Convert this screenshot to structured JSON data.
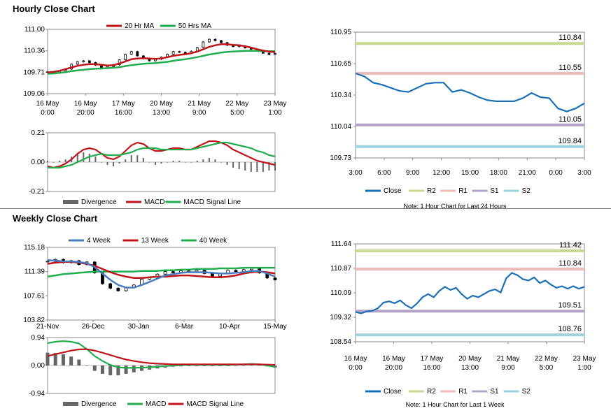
{
  "page": {
    "hourly_title": "Hourly Close Chart",
    "weekly_title": "Weekly Close Chart"
  },
  "colors": {
    "ma_red": "#c0141b",
    "ma_green": "#21ad4e",
    "ma_blue": "#4a7bbd",
    "close": "#1a6fb5",
    "r2": "#c6d98e",
    "r1": "#eebbb9",
    "s1": "#b3a3c9",
    "s2": "#9dd3dd",
    "hist": "#666666",
    "price": "#000000"
  },
  "chart_data": [
    {
      "id": "hourly_price",
      "type": "line",
      "legend": [
        "20 Hr MA",
        "50 Hrs MA"
      ],
      "yticks": [
        "111.00",
        "110.36",
        "109.71",
        "109.06"
      ],
      "ylim": [
        109.06,
        111.0
      ],
      "xticks": [
        [
          "16 May",
          "0:00"
        ],
        [
          "16 May",
          "20:00"
        ],
        [
          "17 May",
          "16:00"
        ],
        [
          "20 May",
          "13:00"
        ],
        [
          "21 May",
          "9:00"
        ],
        [
          "22 May",
          "5:00"
        ],
        [
          "23 May",
          "1:00"
        ]
      ],
      "price": [
        109.72,
        109.68,
        109.75,
        109.8,
        109.95,
        110.02,
        110.05,
        110.0,
        109.92,
        109.84,
        109.88,
        109.93,
        110.08,
        110.25,
        110.33,
        110.2,
        110.12,
        110.05,
        110.1,
        110.16,
        110.25,
        110.33,
        110.31,
        110.28,
        110.34,
        110.45,
        110.62,
        110.7,
        110.66,
        110.6,
        110.52,
        110.48,
        110.5,
        110.44,
        110.4,
        110.35,
        110.28,
        110.24,
        110.27
      ],
      "ma20": [
        109.7,
        109.72,
        109.75,
        109.8,
        109.85,
        109.9,
        109.93,
        109.95,
        109.95,
        109.93,
        109.91,
        109.92,
        109.97,
        110.03,
        110.1,
        110.12,
        110.13,
        110.12,
        110.11,
        110.12,
        110.16,
        110.2,
        110.23,
        110.25,
        110.28,
        110.33,
        110.4,
        110.47,
        110.52,
        110.55,
        110.55,
        110.53,
        110.52,
        110.49,
        110.45,
        110.4,
        110.36,
        110.33,
        110.31
      ],
      "ma50": [
        109.66,
        109.67,
        109.69,
        109.71,
        109.74,
        109.76,
        109.78,
        109.8,
        109.81,
        109.82,
        109.83,
        109.84,
        109.86,
        109.89,
        109.92,
        109.94,
        109.96,
        109.97,
        109.98,
        110.0,
        110.02,
        110.05,
        110.08,
        110.1,
        110.13,
        110.16,
        110.2,
        110.24,
        110.27,
        110.3,
        110.32,
        110.33,
        110.34,
        110.35,
        110.35,
        110.35,
        110.34,
        110.34,
        110.34
      ]
    },
    {
      "id": "hourly_macd",
      "type": "line",
      "legend": [
        "Divergence",
        "MACD",
        "MACD Signal Line"
      ],
      "yticks": [
        "0.21",
        "0.00",
        "-0.21"
      ],
      "ylim": [
        -0.21,
        0.21
      ],
      "macd": [
        -0.03,
        -0.04,
        -0.03,
        -0.01,
        0.02,
        0.06,
        0.09,
        0.1,
        0.09,
        0.06,
        0.03,
        0.02,
        0.04,
        0.08,
        0.12,
        0.14,
        0.13,
        0.1,
        0.08,
        0.08,
        0.09,
        0.1,
        0.1,
        0.09,
        0.09,
        0.11,
        0.13,
        0.15,
        0.15,
        0.14,
        0.12,
        0.09,
        0.07,
        0.05,
        0.03,
        0.01,
        0.0,
        -0.01,
        -0.02
      ],
      "signal": [
        -0.04,
        -0.04,
        -0.04,
        -0.03,
        -0.02,
        0.0,
        0.02,
        0.04,
        0.05,
        0.06,
        0.05,
        0.05,
        0.05,
        0.06,
        0.07,
        0.09,
        0.1,
        0.1,
        0.1,
        0.09,
        0.09,
        0.09,
        0.09,
        0.09,
        0.09,
        0.1,
        0.11,
        0.12,
        0.13,
        0.14,
        0.14,
        0.13,
        0.12,
        0.11,
        0.1,
        0.08,
        0.07,
        0.05,
        0.04
      ],
      "divergence": [
        0.01,
        0.0,
        0.01,
        0.02,
        0.04,
        0.06,
        0.07,
        0.06,
        0.04,
        0.0,
        -0.02,
        -0.03,
        -0.01,
        0.02,
        0.05,
        0.05,
        0.03,
        0.0,
        -0.02,
        -0.01,
        0.0,
        0.01,
        0.01,
        0.0,
        0.0,
        0.01,
        0.02,
        0.03,
        0.02,
        0.0,
        -0.02,
        -0.04,
        -0.05,
        -0.06,
        -0.07,
        -0.07,
        -0.07,
        -0.06,
        -0.06
      ]
    },
    {
      "id": "hourly_close_24h",
      "type": "line",
      "legend": [
        "Close",
        "R2",
        "R1",
        "S1",
        "S2"
      ],
      "yticks": [
        "110.95",
        "110.65",
        "110.34",
        "110.04",
        "109.73"
      ],
      "ylim": [
        109.73,
        110.95
      ],
      "xticks": [
        "3:00",
        "6:00",
        "9:00",
        "12:00",
        "15:00",
        "18:00",
        "21:00",
        "0:00",
        "3:00"
      ],
      "levels": {
        "R2": 110.84,
        "R1": 110.55,
        "S1": 110.05,
        "S2": 109.84
      },
      "level_labels": {
        "R2": "110.84",
        "R1": "110.55",
        "S1": "110.05",
        "S2": "109.84"
      },
      "close": [
        110.55,
        110.52,
        110.46,
        110.44,
        110.41,
        110.38,
        110.37,
        110.41,
        110.45,
        110.46,
        110.46,
        110.37,
        110.39,
        110.36,
        110.32,
        110.29,
        110.28,
        110.28,
        110.28,
        110.31,
        110.36,
        110.32,
        110.31,
        110.21,
        110.18,
        110.21,
        110.26
      ],
      "note": "Note: 1 Hour Chart for Last 24 Hours"
    },
    {
      "id": "weekly_price",
      "type": "line",
      "legend": [
        "4 Week",
        "13 Week",
        "40 Week"
      ],
      "yticks": [
        "115.18",
        "111.39",
        "107.61",
        "103.82"
      ],
      "ylim": [
        103.82,
        115.18
      ],
      "xticks": [
        "21-Nov",
        "26-Dec",
        "30-Jan",
        "6-Mar",
        "10-Apr",
        "15-May"
      ],
      "price": [
        113.0,
        113.3,
        112.8,
        113.1,
        112.5,
        112.9,
        111.2,
        109.5,
        108.8,
        108.4,
        108.9,
        109.3,
        110.2,
        110.5,
        111.0,
        111.4,
        111.2,
        111.5,
        111.3,
        111.6,
        111.1,
        110.7,
        111.1,
        111.6,
        111.4,
        111.7,
        111.9,
        111.2,
        110.4,
        110.1
      ],
      "wk4": [
        113.2,
        113.1,
        113.0,
        113.0,
        112.9,
        112.7,
        112.1,
        111.1,
        110.1,
        109.3,
        108.9,
        108.9,
        109.3,
        109.8,
        110.3,
        110.8,
        111.0,
        111.2,
        111.3,
        111.3,
        111.3,
        111.2,
        111.1,
        111.1,
        111.2,
        111.3,
        111.5,
        111.5,
        111.1,
        110.6
      ],
      "wk13": [
        112.6,
        112.8,
        112.9,
        112.9,
        112.8,
        112.6,
        112.3,
        111.8,
        111.3,
        110.9,
        110.6,
        110.4,
        110.4,
        110.5,
        110.6,
        110.6,
        110.7,
        110.8,
        110.8,
        110.7,
        110.6,
        110.5,
        110.5,
        110.6,
        110.8,
        111.1,
        111.3,
        111.4,
        111.3,
        111.1
      ],
      "wk40": [
        110.6,
        110.8,
        111.0,
        111.1,
        111.2,
        111.3,
        111.4,
        111.4,
        111.4,
        111.4,
        111.4,
        111.4,
        111.5,
        111.5,
        111.5,
        111.6,
        111.6,
        111.7,
        111.7,
        111.8,
        111.8,
        111.8,
        111.9,
        111.9,
        111.9,
        112.0,
        112.0,
        112.0,
        112.0,
        112.0
      ]
    },
    {
      "id": "weekly_macd",
      "type": "line",
      "legend": [
        "Divergence",
        "MACD",
        "MACD Signal Line"
      ],
      "yticks": [
        "0.94",
        "0.00",
        "-0.94"
      ],
      "ylim": [
        -0.94,
        0.94
      ],
      "macd": [
        0.75,
        0.8,
        0.82,
        0.8,
        0.74,
        0.55,
        0.32,
        0.15,
        0.02,
        -0.06,
        -0.08,
        -0.08,
        -0.07,
        -0.06,
        -0.04,
        -0.02,
        0.0,
        0.01,
        0.02,
        0.02,
        0.02,
        0.02,
        0.02,
        0.02,
        0.03,
        0.04,
        0.05,
        0.04,
        0.0,
        -0.05
      ],
      "signal": [
        0.32,
        0.38,
        0.44,
        0.5,
        0.54,
        0.55,
        0.5,
        0.43,
        0.35,
        0.27,
        0.2,
        0.15,
        0.11,
        0.08,
        0.06,
        0.05,
        0.04,
        0.04,
        0.04,
        0.04,
        0.04,
        0.04,
        0.04,
        0.04,
        0.04,
        0.04,
        0.04,
        0.04,
        0.03,
        0.02
      ],
      "divergence": [
        0.43,
        0.42,
        0.38,
        0.3,
        0.2,
        0.0,
        -0.18,
        -0.28,
        -0.33,
        -0.33,
        -0.28,
        -0.23,
        -0.18,
        -0.14,
        -0.1,
        -0.07,
        -0.04,
        -0.03,
        -0.02,
        -0.02,
        -0.02,
        -0.02,
        -0.02,
        -0.02,
        -0.01,
        0.0,
        0.01,
        0.0,
        -0.03,
        -0.07
      ]
    },
    {
      "id": "weekly_close_1w",
      "type": "line",
      "legend": [
        "Close",
        "R2",
        "R1",
        "S1",
        "S2"
      ],
      "yticks": [
        "111.64",
        "110.87",
        "110.09",
        "109.32",
        "108.54"
      ],
      "ylim": [
        108.54,
        111.64
      ],
      "xticks": [
        [
          "16 May",
          "0:00"
        ],
        [
          "16 May",
          "20:00"
        ],
        [
          "17 May",
          "16:00"
        ],
        [
          "20 May",
          "13:00"
        ],
        [
          "21 May",
          "9:00"
        ],
        [
          "22 May",
          "5:00"
        ],
        [
          "23 May",
          "1:00"
        ]
      ],
      "levels": {
        "R2": 111.42,
        "R1": 110.84,
        "S1": 109.51,
        "S2": 108.76
      },
      "level_labels": {
        "R2": "111.42",
        "R1": "110.84",
        "S1": "109.51",
        "S2": "108.76"
      },
      "close": [
        109.48,
        109.44,
        109.5,
        109.52,
        109.6,
        109.78,
        109.82,
        109.76,
        109.85,
        109.7,
        109.6,
        109.75,
        109.95,
        110.05,
        109.95,
        110.15,
        110.28,
        110.18,
        110.25,
        110.05,
        109.9,
        110.0,
        109.95,
        110.05,
        110.15,
        110.2,
        110.1,
        110.55,
        110.72,
        110.65,
        110.52,
        110.48,
        110.58,
        110.4,
        110.48,
        110.35,
        110.25,
        110.3,
        110.22,
        110.3,
        110.22,
        110.28
      ],
      "note": "Note: 1 Hour Chart for Last 1 Week"
    }
  ]
}
